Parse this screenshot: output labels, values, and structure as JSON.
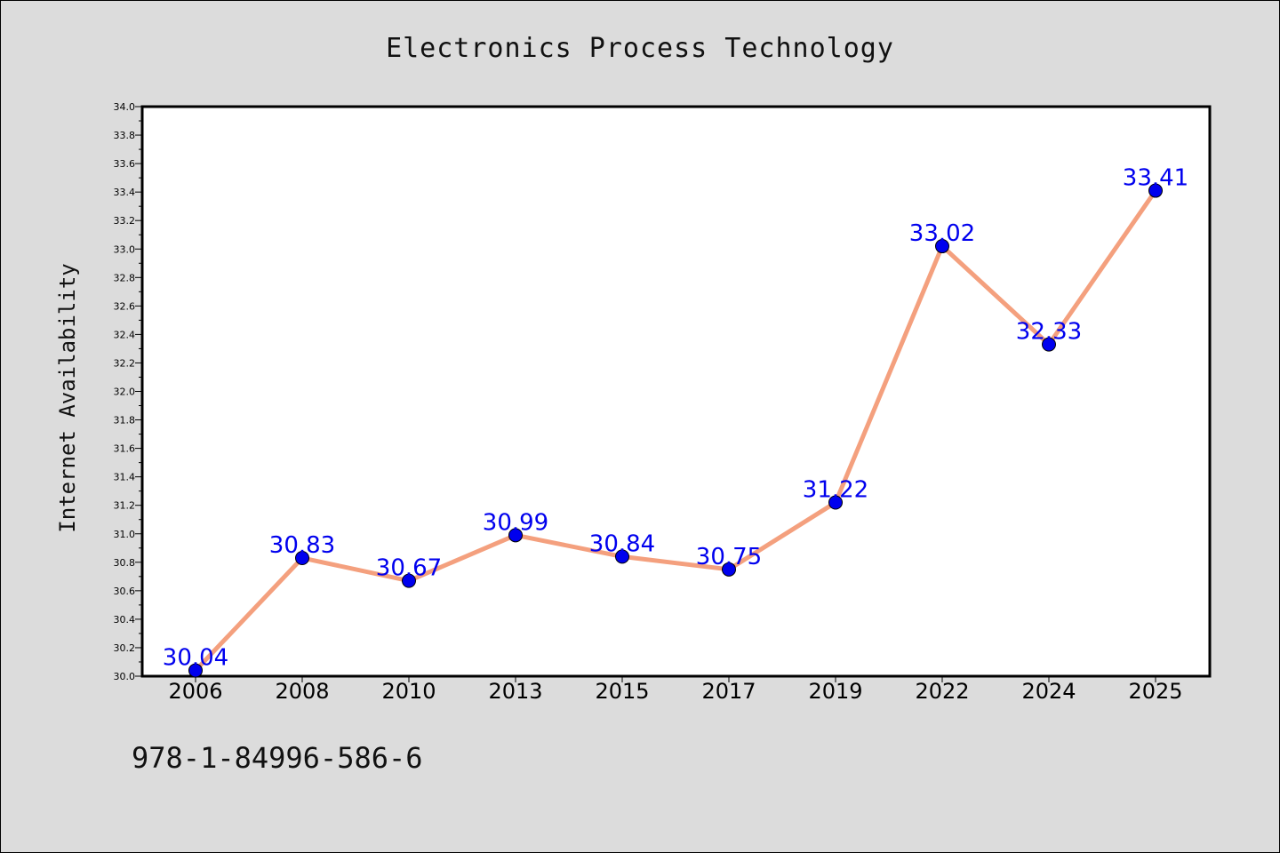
{
  "chart_data": {
    "type": "line",
    "title": "Electronics Process Technology",
    "xlabel": "",
    "ylabel": "Internet Availability",
    "categories": [
      "2006",
      "2008",
      "2010",
      "2013",
      "2015",
      "2017",
      "2019",
      "2022",
      "2024",
      "2025"
    ],
    "series": [
      {
        "values": [
          30.04,
          30.83,
          30.67,
          30.99,
          30.84,
          30.75,
          31.22,
          33.02,
          32.33,
          33.41
        ],
        "line_color": "#f4a07e",
        "marker_color": "#0000ee",
        "label_color": "#0000ee"
      }
    ],
    "data_labels": [
      "30.04",
      "30.83",
      "30.67",
      "30.99",
      "30.84",
      "30.75",
      "31.22",
      "33.02",
      "32.33",
      "33.41"
    ],
    "ylim": [
      30.0,
      34.0
    ],
    "yticks": [
      "30.0",
      "30.2",
      "30.4",
      "30.6",
      "30.8",
      "31.0",
      "31.2",
      "31.4",
      "31.6",
      "31.8",
      "32.0",
      "32.2",
      "32.4",
      "32.6",
      "32.8",
      "33.0",
      "33.2",
      "33.4",
      "33.6",
      "33.8",
      "34.0"
    ],
    "grid": false,
    "legend": "none"
  },
  "footer_text": "978-1-84996-586-6",
  "colors": {
    "background": "#dcdcdc",
    "plot_background": "#ffffff",
    "axis": "#000000"
  }
}
